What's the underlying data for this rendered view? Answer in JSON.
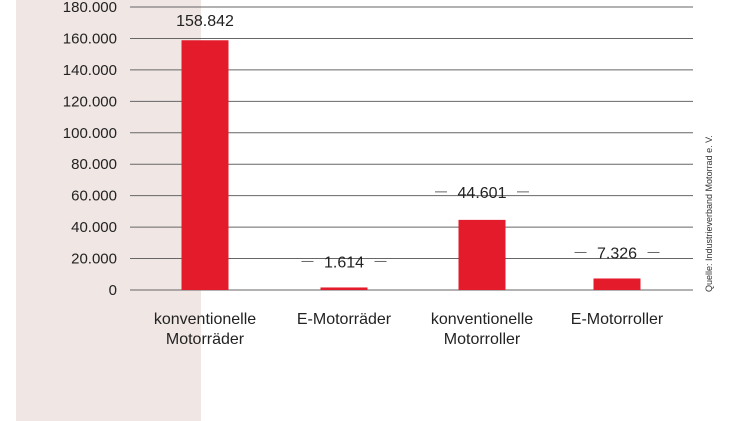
{
  "colors": {
    "bar": "#e31b2b",
    "panel": "#f0e6e4",
    "grid": "#666666",
    "label_line": "#666666"
  },
  "source": "Quelle: Industrieverband Motorrad e. V.",
  "chart_data": {
    "type": "bar",
    "categories": [
      [
        "konventionelle",
        "Motorräder"
      ],
      [
        "E-Motorräder"
      ],
      [
        "konventionelle",
        "Motorroller"
      ],
      [
        "E-Motorroller"
      ]
    ],
    "values": [
      158842,
      1614,
      44601,
      7326
    ],
    "value_labels": [
      "158.842",
      "1.614",
      "44.601",
      "7.326"
    ],
    "yticks": [
      0,
      20000,
      40000,
      60000,
      80000,
      100000,
      120000,
      140000,
      160000,
      180000
    ],
    "ytick_labels": [
      "0",
      "20.000",
      "40.000",
      "60.000",
      "80.000",
      "100.000",
      "120.000",
      "140.000",
      "160.000",
      "180.000"
    ],
    "ylim": [
      0,
      180000
    ],
    "grid": true,
    "title": "",
    "xlabel": "",
    "ylabel": ""
  }
}
